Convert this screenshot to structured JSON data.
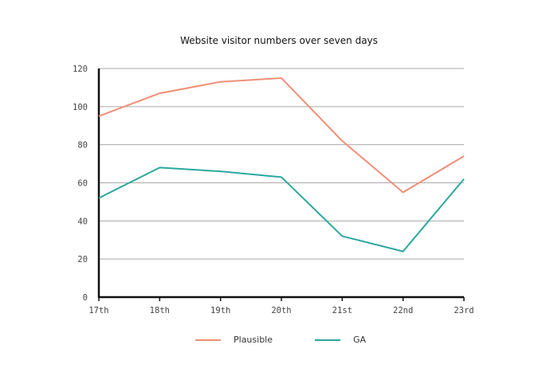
{
  "chart_data": {
    "type": "line",
    "title": "Website visitor numbers over seven days",
    "xlabel": "",
    "ylabel": "",
    "categories": [
      "17th",
      "18th",
      "19th",
      "20th",
      "21st",
      "22nd",
      "23rd"
    ],
    "ylim": [
      0,
      120
    ],
    "yticks": [
      0,
      20,
      40,
      60,
      80,
      100,
      120
    ],
    "grid": true,
    "legend": "bottom",
    "series": [
      {
        "name": "Plausible",
        "color": "#ef8f78",
        "values": [
          95,
          107,
          113,
          115,
          82,
          55,
          74
        ]
      },
      {
        "name": "GA",
        "color": "#2aa89f",
        "values": [
          52,
          68,
          66,
          63,
          32,
          24,
          62
        ]
      }
    ]
  }
}
